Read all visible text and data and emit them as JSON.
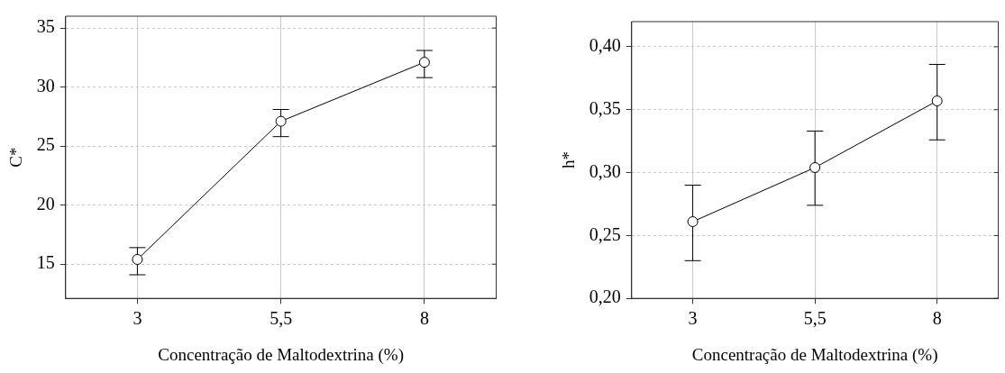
{
  "chart_data": [
    {
      "type": "line",
      "xlabel": "Concentração de Maltodextrina (%)",
      "ylabel": "C*",
      "categories": [
        "3",
        "5,5",
        "8"
      ],
      "series": [
        {
          "color": "#000000",
          "values": [
            15.4,
            27.1,
            32.1
          ],
          "errors": [
            [
              14.1,
              16.4
            ],
            [
              25.8,
              28.1
            ],
            [
              30.8,
              33.1
            ]
          ]
        }
      ],
      "ylim": [
        12.1,
        36
      ],
      "yticks": [
        15,
        20,
        25,
        30,
        35
      ],
      "grid": true,
      "marker": "circle",
      "line_style": "solid"
    },
    {
      "type": "line",
      "xlabel": "Concentração de Maltodextrina (%)",
      "ylabel": "h*",
      "categories": [
        "3",
        "5,5",
        "8"
      ],
      "series": [
        {
          "color": "#000000",
          "values": [
            0.261,
            0.304,
            0.357
          ],
          "errors": [
            [
              0.23,
              0.29
            ],
            [
              0.274,
              0.333
            ],
            [
              0.326,
              0.386
            ]
          ]
        }
      ],
      "ylim": [
        0.2,
        0.42
      ],
      "yticks": [
        {
          "value": 0.2,
          "label": "0,20"
        },
        {
          "value": 0.25,
          "label": "0,25"
        },
        {
          "value": 0.3,
          "label": "0,30"
        },
        {
          "value": 0.35,
          "label": "0,35"
        },
        {
          "value": 0.4,
          "label": "0,40"
        }
      ],
      "grid": true,
      "marker": "circle",
      "line_style": "solid"
    }
  ]
}
